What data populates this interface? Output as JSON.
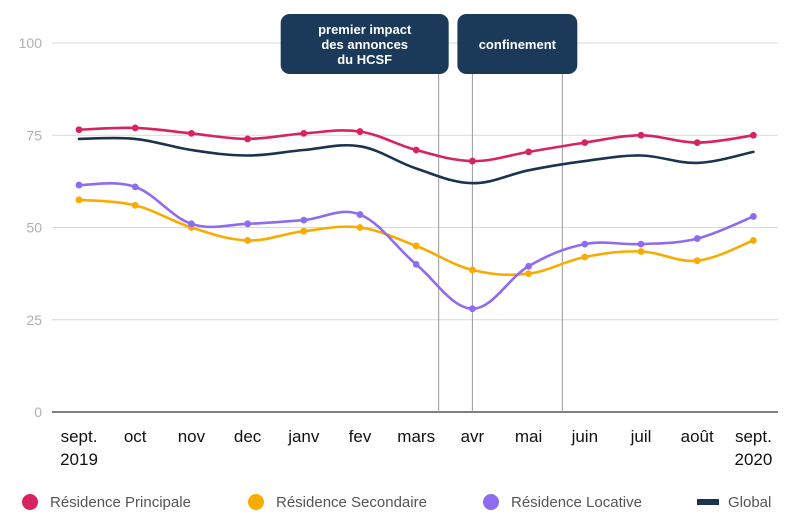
{
  "chart_data": {
    "type": "line",
    "categories": [
      [
        "sept.",
        "2019"
      ],
      [
        "oct"
      ],
      [
        "nov"
      ],
      [
        "dec"
      ],
      [
        "janv"
      ],
      [
        "fev"
      ],
      [
        "mars"
      ],
      [
        "avr"
      ],
      [
        "mai"
      ],
      [
        "juin"
      ],
      [
        "juil"
      ],
      [
        "août"
      ],
      [
        "sept.",
        "2020"
      ]
    ],
    "ylim": [
      0,
      100
    ],
    "yticks": [
      "0",
      "25",
      "50",
      "75",
      "100"
    ],
    "grid": true,
    "legend_position": "bottom",
    "series": [
      {
        "name": "Résidence Principale",
        "color": "#d8245e",
        "marker": "circle",
        "values": [
          76.5,
          77,
          75.5,
          74,
          75.5,
          76,
          71,
          68,
          70.5,
          73,
          75,
          73,
          75
        ]
      },
      {
        "name": "Résidence Secondaire",
        "color": "#f9ab00",
        "marker": "circle",
        "values": [
          57.5,
          56,
          50,
          46.5,
          49,
          50,
          45,
          38.5,
          37.5,
          42,
          43.5,
          41,
          46.5
        ]
      },
      {
        "name": "Résidence Locative",
        "color": "#8e6cef",
        "marker": "circle",
        "values": [
          61.5,
          61,
          51,
          51,
          52,
          53.5,
          40,
          28,
          39.5,
          45.5,
          45.5,
          47,
          53
        ]
      },
      {
        "name": "Global",
        "color": "#1a3350",
        "marker": "none",
        "values": [
          74,
          74,
          71,
          69.5,
          71,
          72,
          66,
          62,
          65.5,
          68,
          69.5,
          67.5,
          70.5
        ]
      }
    ],
    "annotations": [
      {
        "text": [
          "premier impact",
          "des annonces",
          "du HCSF"
        ],
        "at": 6.4
      },
      {
        "text": [
          "confinement"
        ],
        "range": [
          7.0,
          8.6
        ]
      }
    ]
  }
}
